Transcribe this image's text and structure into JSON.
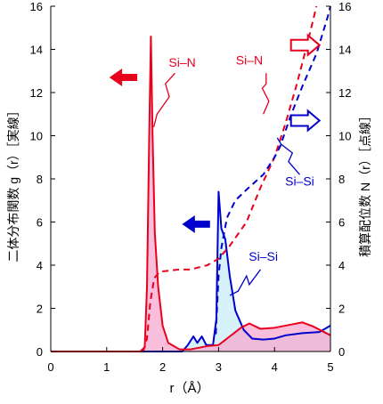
{
  "chart_data": {
    "type": "line",
    "title": "",
    "xlabel": "r（Å）",
    "ylabel_left": "二体分布関数 g（r）［実線］",
    "ylabel_right": "積算配位数 N（r）［点線］",
    "xlim": [
      0,
      5
    ],
    "ylim_left": [
      0,
      16
    ],
    "ylim_right": [
      0,
      16
    ],
    "x_ticks": [
      0,
      1,
      2,
      3,
      4,
      5
    ],
    "y_ticks": [
      0,
      2,
      4,
      6,
      8,
      10,
      12,
      14,
      16
    ],
    "grid": false,
    "series": [
      {
        "name": "Si-N",
        "axis": "left",
        "style": "solid",
        "color": "#e8001c",
        "fill": "#f7a8cf",
        "points": [
          [
            0,
            0
          ],
          [
            1.6,
            0
          ],
          [
            1.68,
            0.2
          ],
          [
            1.72,
            3
          ],
          [
            1.76,
            10
          ],
          [
            1.79,
            14.6
          ],
          [
            1.82,
            10
          ],
          [
            1.86,
            5.5
          ],
          [
            1.92,
            3
          ],
          [
            2.0,
            1.2
          ],
          [
            2.1,
            0.4
          ],
          [
            2.3,
            0.1
          ],
          [
            2.5,
            0.1
          ],
          [
            2.8,
            0.25
          ],
          [
            3.0,
            0.3
          ],
          [
            3.2,
            0.7
          ],
          [
            3.4,
            1.1
          ],
          [
            3.55,
            1.3
          ],
          [
            3.75,
            1.05
          ],
          [
            4.0,
            1.1
          ],
          [
            4.3,
            1.25
          ],
          [
            4.5,
            1.35
          ],
          [
            4.7,
            1.15
          ],
          [
            5.0,
            0.75
          ]
        ]
      },
      {
        "name": "Si-Si",
        "axis": "left",
        "style": "solid",
        "color": "#0000cc",
        "fill": "#c8ecf8",
        "points": [
          [
            0,
            0
          ],
          [
            2.35,
            0
          ],
          [
            2.45,
            0.3
          ],
          [
            2.55,
            0.7
          ],
          [
            2.62,
            0.4
          ],
          [
            2.7,
            0.7
          ],
          [
            2.78,
            0.3
          ],
          [
            2.9,
            0.3
          ],
          [
            2.96,
            1.5
          ],
          [
            3.0,
            7.4
          ],
          [
            3.05,
            5.7
          ],
          [
            3.12,
            5.2
          ],
          [
            3.2,
            3.5
          ],
          [
            3.3,
            1.9
          ],
          [
            3.45,
            1.0
          ],
          [
            3.6,
            0.6
          ],
          [
            3.8,
            0.55
          ],
          [
            4.0,
            0.6
          ],
          [
            4.2,
            0.75
          ],
          [
            4.5,
            0.85
          ],
          [
            4.8,
            0.9
          ],
          [
            5.0,
            1.2
          ]
        ]
      },
      {
        "name": "Si-N",
        "axis": "right",
        "style": "dashed",
        "color": "#e8001c",
        "points": [
          [
            1.65,
            0
          ],
          [
            1.72,
            0.6
          ],
          [
            1.78,
            2.3
          ],
          [
            1.85,
            3.4
          ],
          [
            1.95,
            3.7
          ],
          [
            2.3,
            3.8
          ],
          [
            2.5,
            3.8
          ],
          [
            2.8,
            4.0
          ],
          [
            3.0,
            4.3
          ],
          [
            3.2,
            4.9
          ],
          [
            3.5,
            6.0
          ],
          [
            3.75,
            7.6
          ],
          [
            4.0,
            9.0
          ],
          [
            4.2,
            10.6
          ],
          [
            4.4,
            12.4
          ],
          [
            4.6,
            14.4
          ],
          [
            4.75,
            16
          ]
        ]
      },
      {
        "name": "Si-Si",
        "axis": "right",
        "style": "dashed",
        "color": "#0000cc",
        "points": [
          [
            2.95,
            0.8
          ],
          [
            3.0,
            3.5
          ],
          [
            3.05,
            4.8
          ],
          [
            3.15,
            6.2
          ],
          [
            3.3,
            7.0
          ],
          [
            3.5,
            7.5
          ],
          [
            3.8,
            8.2
          ],
          [
            4.0,
            9.0
          ],
          [
            4.1,
            9.5
          ],
          [
            4.3,
            11.0
          ],
          [
            4.5,
            12.3
          ],
          [
            4.75,
            13.8
          ],
          [
            4.95,
            15.5
          ],
          [
            5.0,
            16
          ]
        ]
      }
    ],
    "annotations": [
      {
        "name": "label-sin-solid",
        "text": "Si–N",
        "color": "#e8001c",
        "x": 2.35,
        "y": 13.2
      },
      {
        "name": "label-sin-dashed",
        "text": "Si–N",
        "color": "#e8001c",
        "x": 3.55,
        "y": 13.3
      },
      {
        "name": "label-sisi-dashed",
        "text": "Si–Si",
        "color": "#0000cc",
        "x": 4.45,
        "y": 7.7
      },
      {
        "name": "label-sisi-solid",
        "text": "Si–Si",
        "color": "#0000cc",
        "x": 3.8,
        "y": 4.2
      }
    ],
    "arrows": [
      {
        "name": "arrow-red-left",
        "direction": "left",
        "style": "filled",
        "color": "#e8001c",
        "x": 1.3,
        "y": 12.7
      },
      {
        "name": "arrow-blue-left",
        "direction": "left",
        "style": "filled",
        "color": "#0000cc",
        "x": 2.6,
        "y": 5.9
      },
      {
        "name": "arrow-red-right",
        "direction": "right",
        "style": "outline",
        "color": "#e8001c",
        "x": 4.55,
        "y": 14.2
      },
      {
        "name": "arrow-blue-right",
        "direction": "right",
        "style": "outline",
        "color": "#0000cc",
        "x": 4.55,
        "y": 10.7
      }
    ]
  }
}
